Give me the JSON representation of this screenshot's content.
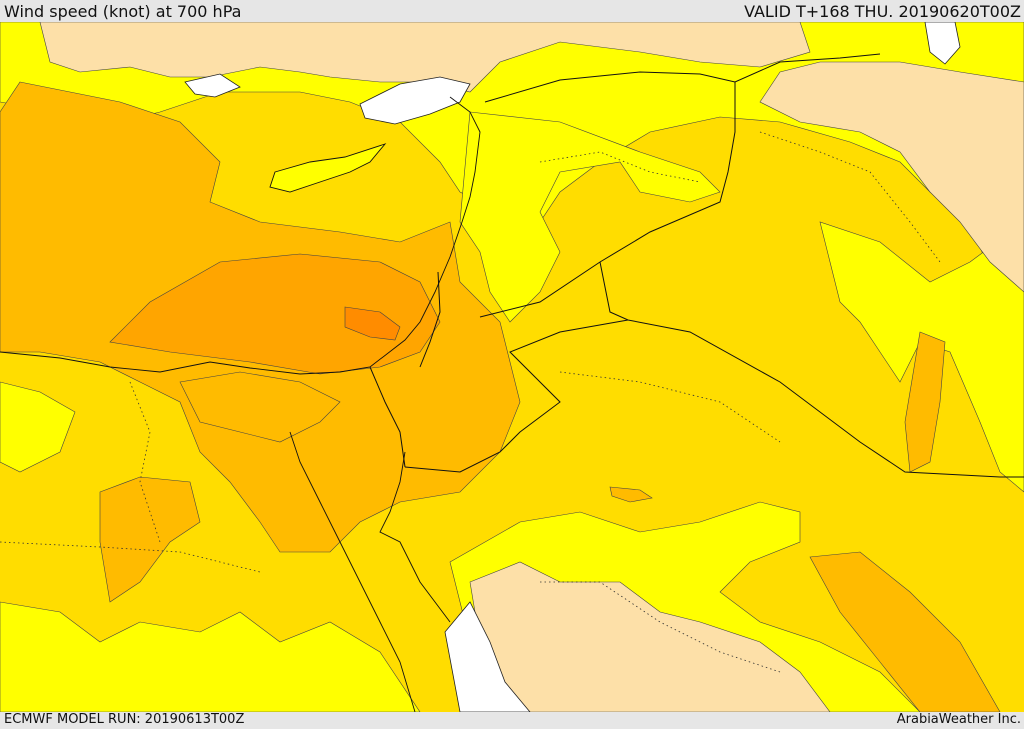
{
  "header": {
    "title": "Wind speed (knot) at 700 hPa",
    "valid": "VALID T+168 THU. 20190620T00Z"
  },
  "footer": {
    "model_run": "ECMWF MODEL RUN: 20190613T00Z",
    "credit": "ArabiaWeather Inc."
  },
  "colors": {
    "land_low": "#fde0a8",
    "band_yellow": "#ffff00",
    "band_gold": "#ffdd00",
    "band_amber": "#ffbb00",
    "band_orange": "#ffa500",
    "band_dark_orange": "#ff8c00",
    "sea_white": "#ffffff"
  }
}
